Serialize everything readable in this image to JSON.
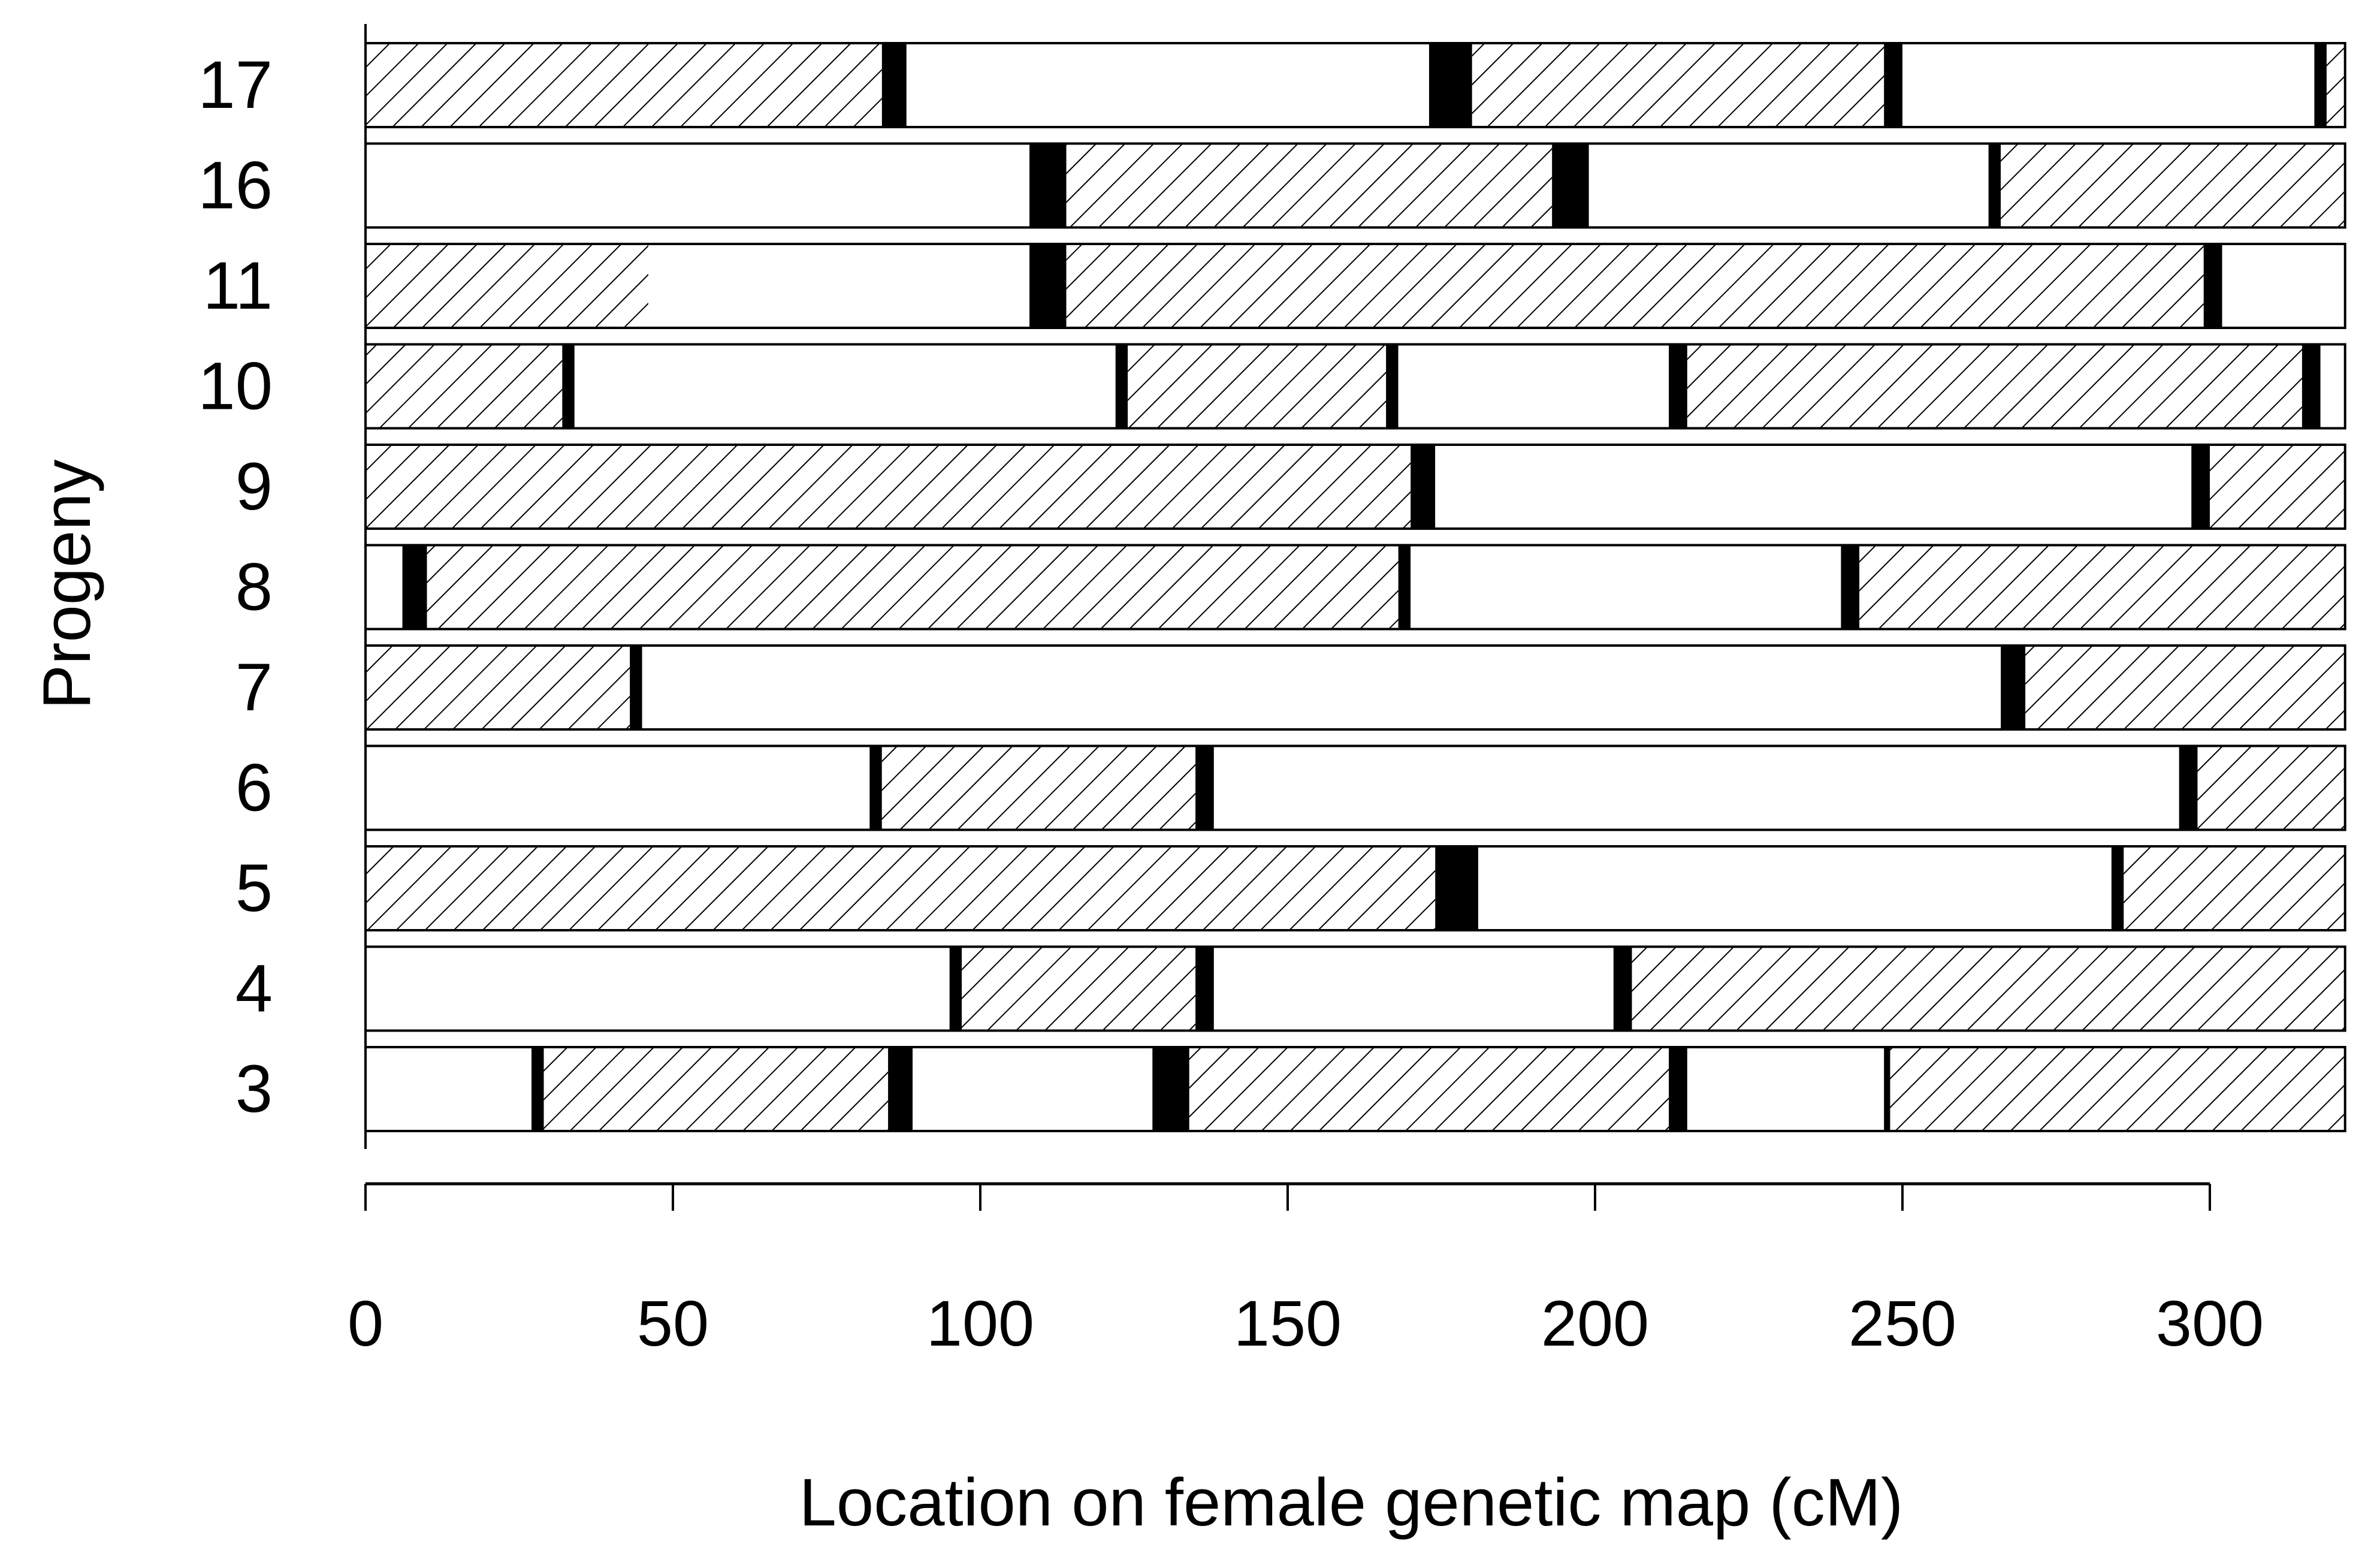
{
  "chart_data": {
    "type": "bar",
    "orientation": "horizontal",
    "title": "",
    "xlabel": "Location on female genetic map (cM)",
    "ylabel": "Progeny",
    "xlim": [
      0,
      322
    ],
    "xticks": [
      0,
      50,
      100,
      150,
      200,
      250,
      300
    ],
    "xtick_labels": [
      "0",
      "50",
      "100",
      "150",
      "200",
      "250",
      "300"
    ],
    "categories": [
      "17",
      "16",
      "11",
      "10",
      "9",
      "8",
      "7",
      "6",
      "5",
      "4",
      "3"
    ],
    "fill_styles": {
      "hatched": "diagonal-hatch",
      "open": "white",
      "crossover": "black"
    },
    "colors": {
      "ink": "#000000",
      "open": "#ffffff"
    },
    "rows": [
      {
        "label": "17",
        "segments": [
          {
            "start": 0,
            "end": 84,
            "fill": "hatched"
          },
          {
            "start": 84,
            "end": 88,
            "fill": "crossover"
          },
          {
            "start": 88,
            "end": 173,
            "fill": "open"
          },
          {
            "start": 173,
            "end": 180,
            "fill": "crossover"
          },
          {
            "start": 180,
            "end": 247,
            "fill": "hatched"
          },
          {
            "start": 247,
            "end": 250,
            "fill": "crossover"
          },
          {
            "start": 250,
            "end": 317,
            "fill": "open"
          },
          {
            "start": 317,
            "end": 319,
            "fill": "crossover"
          },
          {
            "start": 319,
            "end": 322,
            "fill": "hatched"
          }
        ]
      },
      {
        "label": "16",
        "segments": [
          {
            "start": 0,
            "end": 108,
            "fill": "open"
          },
          {
            "start": 108,
            "end": 114,
            "fill": "crossover"
          },
          {
            "start": 114,
            "end": 193,
            "fill": "hatched"
          },
          {
            "start": 193,
            "end": 199,
            "fill": "crossover"
          },
          {
            "start": 199,
            "end": 264,
            "fill": "open"
          },
          {
            "start": 264,
            "end": 266,
            "fill": "crossover"
          },
          {
            "start": 266,
            "end": 322,
            "fill": "hatched"
          }
        ]
      },
      {
        "label": "11",
        "segments": [
          {
            "start": 0,
            "end": 46,
            "fill": "hatched"
          },
          {
            "start": 46,
            "end": 108,
            "fill": "open"
          },
          {
            "start": 108,
            "end": 114,
            "fill": "crossover"
          },
          {
            "start": 114,
            "end": 299,
            "fill": "hatched"
          },
          {
            "start": 299,
            "end": 302,
            "fill": "crossover"
          },
          {
            "start": 302,
            "end": 322,
            "fill": "open"
          }
        ]
      },
      {
        "label": "10",
        "segments": [
          {
            "start": 0,
            "end": 32,
            "fill": "hatched"
          },
          {
            "start": 32,
            "end": 34,
            "fill": "crossover"
          },
          {
            "start": 34,
            "end": 122,
            "fill": "open"
          },
          {
            "start": 122,
            "end": 124,
            "fill": "crossover"
          },
          {
            "start": 124,
            "end": 166,
            "fill": "hatched"
          },
          {
            "start": 166,
            "end": 168,
            "fill": "crossover"
          },
          {
            "start": 168,
            "end": 212,
            "fill": "open"
          },
          {
            "start": 212,
            "end": 215,
            "fill": "crossover"
          },
          {
            "start": 215,
            "end": 315,
            "fill": "hatched"
          },
          {
            "start": 315,
            "end": 318,
            "fill": "crossover"
          },
          {
            "start": 318,
            "end": 322,
            "fill": "open"
          }
        ]
      },
      {
        "label": "9",
        "segments": [
          {
            "start": 0,
            "end": 170,
            "fill": "hatched"
          },
          {
            "start": 170,
            "end": 174,
            "fill": "crossover"
          },
          {
            "start": 174,
            "end": 297,
            "fill": "open"
          },
          {
            "start": 297,
            "end": 300,
            "fill": "crossover"
          },
          {
            "start": 300,
            "end": 322,
            "fill": "hatched"
          }
        ]
      },
      {
        "label": "8",
        "segments": [
          {
            "start": 0,
            "end": 6,
            "fill": "open"
          },
          {
            "start": 6,
            "end": 10,
            "fill": "crossover"
          },
          {
            "start": 10,
            "end": 168,
            "fill": "hatched"
          },
          {
            "start": 168,
            "end": 170,
            "fill": "crossover"
          },
          {
            "start": 170,
            "end": 240,
            "fill": "open"
          },
          {
            "start": 240,
            "end": 243,
            "fill": "crossover"
          },
          {
            "start": 243,
            "end": 322,
            "fill": "hatched"
          }
        ]
      },
      {
        "label": "7",
        "segments": [
          {
            "start": 0,
            "end": 43,
            "fill": "hatched"
          },
          {
            "start": 43,
            "end": 45,
            "fill": "crossover"
          },
          {
            "start": 45,
            "end": 266,
            "fill": "open"
          },
          {
            "start": 266,
            "end": 270,
            "fill": "crossover"
          },
          {
            "start": 270,
            "end": 322,
            "fill": "hatched"
          }
        ]
      },
      {
        "label": "6",
        "segments": [
          {
            "start": 0,
            "end": 82,
            "fill": "open"
          },
          {
            "start": 82,
            "end": 84,
            "fill": "crossover"
          },
          {
            "start": 84,
            "end": 135,
            "fill": "hatched"
          },
          {
            "start": 135,
            "end": 138,
            "fill": "crossover"
          },
          {
            "start": 138,
            "end": 295,
            "fill": "open"
          },
          {
            "start": 295,
            "end": 298,
            "fill": "crossover"
          },
          {
            "start": 298,
            "end": 322,
            "fill": "hatched"
          }
        ]
      },
      {
        "label": "5",
        "segments": [
          {
            "start": 0,
            "end": 174,
            "fill": "hatched"
          },
          {
            "start": 174,
            "end": 181,
            "fill": "crossover"
          },
          {
            "start": 181,
            "end": 284,
            "fill": "open"
          },
          {
            "start": 284,
            "end": 286,
            "fill": "crossover"
          },
          {
            "start": 286,
            "end": 322,
            "fill": "hatched"
          }
        ]
      },
      {
        "label": "4",
        "segments": [
          {
            "start": 0,
            "end": 95,
            "fill": "open"
          },
          {
            "start": 95,
            "end": 97,
            "fill": "crossover"
          },
          {
            "start": 97,
            "end": 135,
            "fill": "hatched"
          },
          {
            "start": 135,
            "end": 138,
            "fill": "crossover"
          },
          {
            "start": 138,
            "end": 203,
            "fill": "open"
          },
          {
            "start": 203,
            "end": 206,
            "fill": "crossover"
          },
          {
            "start": 206,
            "end": 322,
            "fill": "hatched"
          }
        ]
      },
      {
        "label": "3",
        "segments": [
          {
            "start": 0,
            "end": 27,
            "fill": "open"
          },
          {
            "start": 27,
            "end": 29,
            "fill": "crossover"
          },
          {
            "start": 29,
            "end": 85,
            "fill": "hatched"
          },
          {
            "start": 85,
            "end": 89,
            "fill": "crossover"
          },
          {
            "start": 89,
            "end": 128,
            "fill": "open"
          },
          {
            "start": 128,
            "end": 134,
            "fill": "crossover"
          },
          {
            "start": 134,
            "end": 212,
            "fill": "hatched"
          },
          {
            "start": 212,
            "end": 215,
            "fill": "crossover"
          },
          {
            "start": 215,
            "end": 247,
            "fill": "open"
          },
          {
            "start": 247,
            "end": 248,
            "fill": "crossover"
          },
          {
            "start": 248,
            "end": 322,
            "fill": "hatched"
          }
        ]
      }
    ]
  }
}
